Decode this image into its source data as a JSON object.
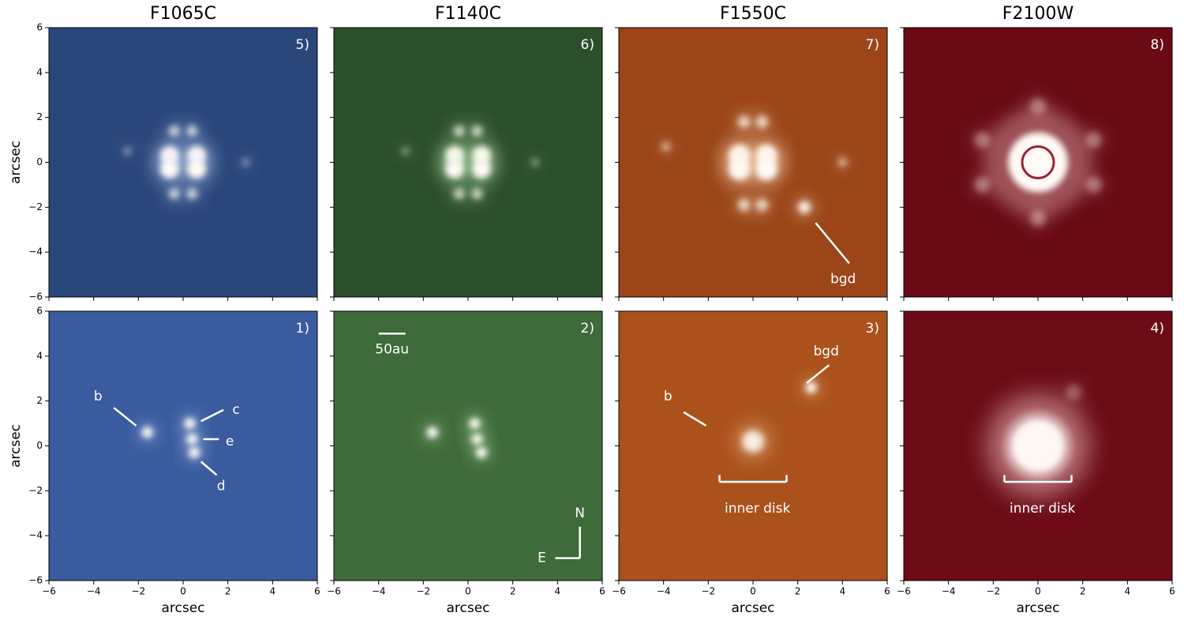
{
  "axes": {
    "xlim": [
      -6,
      6
    ],
    "ylim": [
      -6,
      6
    ],
    "xticks": [
      {
        "value": -6,
        "label": "−6"
      },
      {
        "value": -4,
        "label": "−4"
      },
      {
        "value": -2,
        "label": "−2"
      },
      0,
      2,
      4,
      6
    ],
    "yticks": [
      {
        "value": -6,
        "label": "−6"
      },
      {
        "value": -4,
        "label": "−4"
      },
      {
        "value": -2,
        "label": "−2"
      },
      0,
      2,
      4,
      6
    ],
    "xlabel": "arcsec",
    "ylabel": "arcsec"
  },
  "columns": [
    "F1065C",
    "F1140C",
    "F1550C",
    "F2100W"
  ],
  "panels": [
    {
      "label": "5)",
      "color": "#2a477c",
      "annotations": []
    },
    {
      "label": "6)",
      "color": "#2c4f2b",
      "annotations": []
    },
    {
      "label": "7)",
      "color": "#9b4518",
      "annotations": [
        "bgd"
      ]
    },
    {
      "label": "8)",
      "color": "#690a14",
      "annotations": []
    },
    {
      "label": "1)",
      "color": "#3a5c9e",
      "annotations": [
        "b",
        "c",
        "e",
        "d"
      ]
    },
    {
      "label": "2)",
      "color": "#3e6b3a",
      "annotations": [
        "50au",
        "N",
        "E"
      ]
    },
    {
      "label": "3)",
      "color": "#ab521c",
      "annotations": [
        "b",
        "bgd",
        "inner disk"
      ]
    },
    {
      "label": "4)",
      "color": "#6c0b16",
      "annotations": [
        "inner disk"
      ]
    }
  ]
}
